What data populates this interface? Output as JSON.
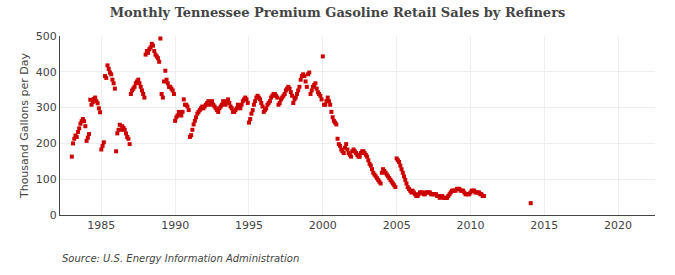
{
  "chart_data": {
    "type": "scatter",
    "title": "Monthly Tennessee Premium Gasoline Retail Sales by Refiners",
    "y_label": "Thousand Gallons per Day",
    "annotations": [
      "Source: U.S. Energy Information Administration"
    ],
    "color": "#cc0000",
    "marker": "square",
    "grid": true,
    "xlim": [
      1982.2,
      2022.5
    ],
    "xticks": [
      1985,
      1990,
      1995,
      2000,
      2005,
      2010,
      2015,
      2020
    ],
    "ylim": [
      0,
      500
    ],
    "yticks": [
      0,
      100,
      200,
      300,
      400,
      500
    ],
    "x": [
      1983.0,
      1983.083,
      1983.167,
      1983.25,
      1983.333,
      1983.417,
      1983.5,
      1983.583,
      1983.667,
      1983.75,
      1983.833,
      1983.917,
      1984.0,
      1984.083,
      1984.167,
      1984.25,
      1984.333,
      1984.417,
      1984.5,
      1984.583,
      1984.667,
      1984.75,
      1984.833,
      1984.917,
      1985.0,
      1985.083,
      1985.167,
      1985.25,
      1985.333,
      1985.417,
      1985.5,
      1985.583,
      1985.667,
      1985.75,
      1985.833,
      1985.917,
      1986.0,
      1986.083,
      1986.167,
      1986.25,
      1986.333,
      1986.417,
      1986.5,
      1986.583,
      1986.667,
      1986.75,
      1986.833,
      1986.917,
      1987.0,
      1987.083,
      1987.167,
      1987.25,
      1987.333,
      1987.417,
      1987.5,
      1987.583,
      1987.667,
      1987.75,
      1987.833,
      1987.917,
      1988.0,
      1988.083,
      1988.167,
      1988.25,
      1988.333,
      1988.417,
      1988.5,
      1988.583,
      1988.667,
      1988.75,
      1988.833,
      1988.917,
      1989.0,
      1989.083,
      1989.167,
      1989.25,
      1989.333,
      1989.417,
      1989.5,
      1989.583,
      1989.667,
      1989.75,
      1989.833,
      1989.917,
      1990.0,
      1990.083,
      1990.167,
      1990.25,
      1990.333,
      1990.417,
      1990.5,
      1990.583,
      1990.667,
      1990.75,
      1990.833,
      1990.917,
      1991.0,
      1991.083,
      1991.167,
      1991.25,
      1991.333,
      1991.417,
      1991.5,
      1991.583,
      1991.667,
      1991.75,
      1991.833,
      1991.917,
      1992.0,
      1992.083,
      1992.167,
      1992.25,
      1992.333,
      1992.417,
      1992.5,
      1992.583,
      1992.667,
      1992.75,
      1992.833,
      1992.917,
      1993.0,
      1993.083,
      1993.167,
      1993.25,
      1993.333,
      1993.417,
      1993.5,
      1993.583,
      1993.667,
      1993.75,
      1993.833,
      1993.917,
      1994.0,
      1994.083,
      1994.167,
      1994.25,
      1994.333,
      1994.417,
      1994.5,
      1994.583,
      1994.667,
      1994.75,
      1994.833,
      1994.917,
      1995.0,
      1995.083,
      1995.167,
      1995.25,
      1995.333,
      1995.417,
      1995.5,
      1995.583,
      1995.667,
      1995.75,
      1995.833,
      1995.917,
      1996.0,
      1996.083,
      1996.167,
      1996.25,
      1996.333,
      1996.417,
      1996.5,
      1996.583,
      1996.667,
      1996.75,
      1996.833,
      1996.917,
      1997.0,
      1997.083,
      1997.167,
      1997.25,
      1997.333,
      1997.417,
      1997.5,
      1997.583,
      1997.667,
      1997.75,
      1997.833,
      1997.917,
      1998.0,
      1998.083,
      1998.167,
      1998.25,
      1998.333,
      1998.417,
      1998.5,
      1998.583,
      1998.667,
      1998.75,
      1998.833,
      1998.917,
      1999.0,
      1999.083,
      1999.167,
      1999.25,
      1999.333,
      1999.417,
      1999.5,
      1999.583,
      1999.667,
      1999.75,
      1999.833,
      1999.917,
      2000.0,
      2000.083,
      2000.167,
      2000.25,
      2000.333,
      2000.417,
      2000.5,
      2000.583,
      2000.667,
      2000.75,
      2000.833,
      2000.917,
      2001.0,
      2001.083,
      2001.167,
      2001.25,
      2001.333,
      2001.417,
      2001.5,
      2001.583,
      2001.667,
      2001.75,
      2001.833,
      2001.917,
      2002.0,
      2002.083,
      2002.167,
      2002.25,
      2002.333,
      2002.417,
      2002.5,
      2002.583,
      2002.667,
      2002.75,
      2002.833,
      2002.917,
      2003.0,
      2003.083,
      2003.167,
      2003.25,
      2003.333,
      2003.417,
      2003.5,
      2003.583,
      2003.667,
      2003.75,
      2003.833,
      2003.917,
      2004.0,
      2004.083,
      2004.167,
      2004.25,
      2004.333,
      2004.417,
      2004.5,
      2004.583,
      2004.667,
      2004.75,
      2004.833,
      2004.917,
      2005.0,
      2005.083,
      2005.167,
      2005.25,
      2005.333,
      2005.417,
      2005.5,
      2005.583,
      2005.667,
      2005.75,
      2005.833,
      2005.917,
      2006.0,
      2006.083,
      2006.167,
      2006.25,
      2006.333,
      2006.417,
      2006.5,
      2006.583,
      2006.667,
      2006.75,
      2006.833,
      2006.917,
      2007.0,
      2007.083,
      2007.167,
      2007.25,
      2007.333,
      2007.417,
      2007.5,
      2007.583,
      2007.667,
      2007.75,
      2007.833,
      2007.917,
      2008.0,
      2008.083,
      2008.167,
      2008.25,
      2008.333,
      2008.417,
      2008.5,
      2008.583,
      2008.667,
      2008.75,
      2008.833,
      2008.917,
      2009.0,
      2009.083,
      2009.167,
      2009.25,
      2009.333,
      2009.417,
      2009.5,
      2009.583,
      2009.667,
      2009.75,
      2009.833,
      2009.917,
      2010.0,
      2010.083,
      2010.167,
      2010.25,
      2010.333,
      2010.417,
      2010.5,
      2010.583,
      2010.667,
      2010.75,
      2010.833,
      2010.917,
      2014.083
    ],
    "values": [
      163,
      200,
      213,
      222,
      218,
      232,
      242,
      255,
      262,
      268,
      262,
      248,
      207,
      216,
      226,
      322,
      308,
      315,
      324,
      328,
      318,
      312,
      298,
      287,
      183,
      193,
      203,
      388,
      383,
      418,
      408,
      398,
      393,
      378,
      368,
      353,
      178,
      228,
      238,
      252,
      238,
      248,
      243,
      238,
      228,
      218,
      213,
      198,
      338,
      348,
      353,
      358,
      368,
      373,
      378,
      368,
      358,
      348,
      338,
      328,
      448,
      458,
      453,
      463,
      468,
      478,
      473,
      458,
      448,
      443,
      438,
      428,
      493,
      338,
      328,
      373,
      403,
      378,
      368,
      358,
      358,
      353,
      348,
      338,
      263,
      273,
      278,
      288,
      283,
      278,
      288,
      323,
      308,
      308,
      303,
      293,
      218,
      223,
      238,
      253,
      263,
      273,
      283,
      288,
      293,
      298,
      303,
      298,
      303,
      308,
      313,
      318,
      308,
      313,
      318,
      308,
      303,
      298,
      293,
      288,
      298,
      303,
      308,
      318,
      313,
      308,
      318,
      323,
      313,
      303,
      298,
      288,
      288,
      293,
      298,
      308,
      303,
      298,
      308,
      318,
      323,
      328,
      323,
      313,
      258,
      268,
      283,
      293,
      308,
      318,
      328,
      333,
      328,
      323,
      313,
      303,
      288,
      293,
      298,
      308,
      313,
      318,
      328,
      333,
      338,
      338,
      333,
      328,
      308,
      313,
      323,
      328,
      333,
      338,
      348,
      353,
      358,
      353,
      343,
      333,
      313,
      323,
      328,
      338,
      348,
      358,
      378,
      388,
      393,
      388,
      373,
      358,
      393,
      398,
      338,
      348,
      358,
      363,
      368,
      353,
      343,
      338,
      333,
      323,
      443,
      308,
      308,
      318,
      328,
      318,
      308,
      288,
      273,
      263,
      258,
      253,
      213,
      198,
      193,
      183,
      178,
      173,
      188,
      198,
      183,
      173,
      168,
      163,
      178,
      183,
      178,
      173,
      168,
      163,
      163,
      173,
      178,
      178,
      173,
      168,
      163,
      153,
      143,
      138,
      128,
      118,
      113,
      108,
      103,
      98,
      93,
      88,
      118,
      128,
      123,
      118,
      113,
      108,
      103,
      98,
      93,
      88,
      83,
      78,
      158,
      153,
      148,
      138,
      128,
      118,
      108,
      98,
      88,
      78,
      73,
      68,
      63,
      68,
      63,
      58,
      53,
      53,
      58,
      63,
      63,
      63,
      58,
      58,
      63,
      63,
      63,
      63,
      58,
      58,
      58,
      58,
      58,
      53,
      53,
      48,
      53,
      53,
      48,
      48,
      48,
      48,
      53,
      58,
      63,
      68,
      68,
      68,
      68,
      73,
      73,
      73,
      68,
      68,
      68,
      63,
      58,
      58,
      58,
      58,
      63,
      68,
      68,
      68,
      63,
      63,
      63,
      63,
      58,
      58,
      53,
      53,
      33
    ]
  }
}
